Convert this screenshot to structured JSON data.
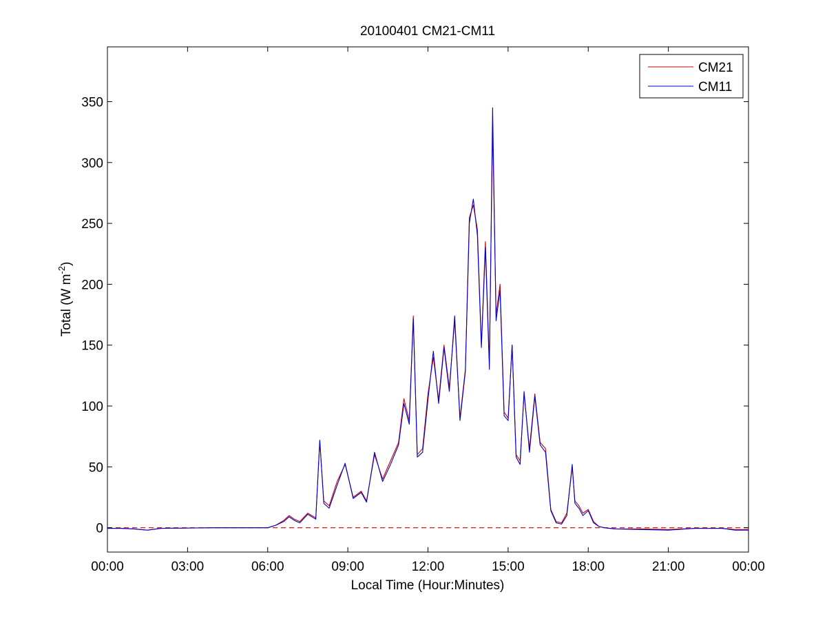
{
  "chart_data": {
    "type": "line",
    "title": "20100401 CM21-CM11",
    "xlabel": "Local Time (Hour:Minutes)",
    "ylabel_main": "Total (W m",
    "ylabel_sup": "-2",
    "ylabel_close": ")",
    "xlim": [
      0,
      24
    ],
    "ylim": [
      -20,
      395
    ],
    "x_ticks": [
      {
        "value": 0,
        "label": "00:00"
      },
      {
        "value": 3,
        "label": "03:00"
      },
      {
        "value": 6,
        "label": "06:00"
      },
      {
        "value": 9,
        "label": "09:00"
      },
      {
        "value": 12,
        "label": "12:00"
      },
      {
        "value": 15,
        "label": "15:00"
      },
      {
        "value": 18,
        "label": "18:00"
      },
      {
        "value": 21,
        "label": "21:00"
      },
      {
        "value": 24,
        "label": "00:00"
      }
    ],
    "y_ticks": [
      {
        "value": 0,
        "label": "0"
      },
      {
        "value": 50,
        "label": "50"
      },
      {
        "value": 100,
        "label": "100"
      },
      {
        "value": 150,
        "label": "150"
      },
      {
        "value": 200,
        "label": "200"
      },
      {
        "value": 250,
        "label": "250"
      },
      {
        "value": 300,
        "label": "300"
      },
      {
        "value": 350,
        "label": "350"
      }
    ],
    "grid": false,
    "legend_position": "top-right",
    "zero_reference_line": {
      "y": 0,
      "color": "#cc0000",
      "style": "dashed"
    },
    "series": [
      {
        "name": "CM21",
        "color": "#cc0000",
        "x": [
          0.0,
          0.5,
          1.0,
          1.5,
          2.0,
          4.0,
          6.0,
          6.3,
          6.6,
          6.8,
          7.0,
          7.2,
          7.5,
          7.8,
          7.95,
          8.1,
          8.3,
          8.6,
          8.9,
          9.2,
          9.5,
          9.7,
          10.0,
          10.3,
          10.6,
          10.9,
          11.1,
          11.3,
          11.45,
          11.6,
          11.8,
          12.0,
          12.2,
          12.4,
          12.6,
          12.8,
          13.0,
          13.2,
          13.4,
          13.55,
          13.7,
          13.85,
          14.0,
          14.15,
          14.3,
          14.42,
          14.55,
          14.7,
          14.85,
          15.0,
          15.15,
          15.3,
          15.45,
          15.6,
          15.8,
          16.0,
          16.2,
          16.4,
          16.6,
          16.8,
          17.0,
          17.2,
          17.4,
          17.5,
          17.65,
          17.8,
          18.0,
          18.2,
          18.4,
          18.6,
          19.0,
          20.0,
          21.0,
          22.0,
          23.0,
          23.5,
          24.0
        ],
        "y": [
          -0.5,
          -0.5,
          -1,
          -2,
          -0.5,
          0,
          0,
          2,
          6,
          10,
          7,
          5,
          12,
          8,
          71,
          22,
          18,
          38,
          52,
          25,
          30,
          22,
          60,
          40,
          55,
          70,
          106,
          88,
          174,
          60,
          65,
          110,
          140,
          105,
          150,
          115,
          170,
          90,
          130,
          255,
          265,
          245,
          150,
          235,
          135,
          330,
          175,
          200,
          95,
          90,
          150,
          60,
          55,
          110,
          65,
          110,
          70,
          65,
          15,
          5,
          4,
          12,
          50,
          22,
          18,
          12,
          15,
          5,
          1,
          0,
          -1,
          -1,
          -1.5,
          -0.5,
          -0.5,
          -1.5,
          -1.5
        ]
      },
      {
        "name": "CM11",
        "color": "#0000cc",
        "x": [
          0.0,
          0.5,
          1.0,
          1.5,
          2.0,
          4.0,
          6.0,
          6.3,
          6.6,
          6.8,
          7.0,
          7.2,
          7.5,
          7.8,
          7.95,
          8.1,
          8.3,
          8.6,
          8.9,
          9.2,
          9.5,
          9.7,
          10.0,
          10.3,
          10.6,
          10.9,
          11.1,
          11.3,
          11.45,
          11.6,
          11.8,
          12.0,
          12.2,
          12.4,
          12.6,
          12.8,
          13.0,
          13.2,
          13.4,
          13.55,
          13.7,
          13.85,
          14.0,
          14.15,
          14.3,
          14.42,
          14.55,
          14.7,
          14.85,
          15.0,
          15.15,
          15.3,
          15.45,
          15.6,
          15.8,
          16.0,
          16.2,
          16.4,
          16.6,
          16.8,
          17.0,
          17.2,
          17.4,
          17.5,
          17.65,
          17.8,
          18.0,
          18.2,
          18.4,
          18.6,
          19.0,
          20.0,
          21.0,
          22.0,
          23.0,
          23.5,
          24.0
        ],
        "y": [
          -0.5,
          -0.5,
          -1,
          -2,
          -0.5,
          0,
          0,
          2,
          5,
          9,
          6,
          4,
          11,
          7,
          72,
          20,
          16,
          35,
          53,
          24,
          29,
          21,
          62,
          38,
          52,
          68,
          102,
          85,
          172,
          58,
          62,
          105,
          145,
          102,
          148,
          112,
          174,
          88,
          128,
          250,
          270,
          240,
          148,
          230,
          130,
          345,
          170,
          195,
          92,
          88,
          150,
          58,
          52,
          112,
          62,
          108,
          68,
          62,
          14,
          4,
          3,
          10,
          52,
          20,
          16,
          10,
          14,
          4,
          1,
          0,
          -1,
          -1.5,
          -2,
          -0.5,
          -0.5,
          -2,
          -2
        ]
      }
    ]
  }
}
